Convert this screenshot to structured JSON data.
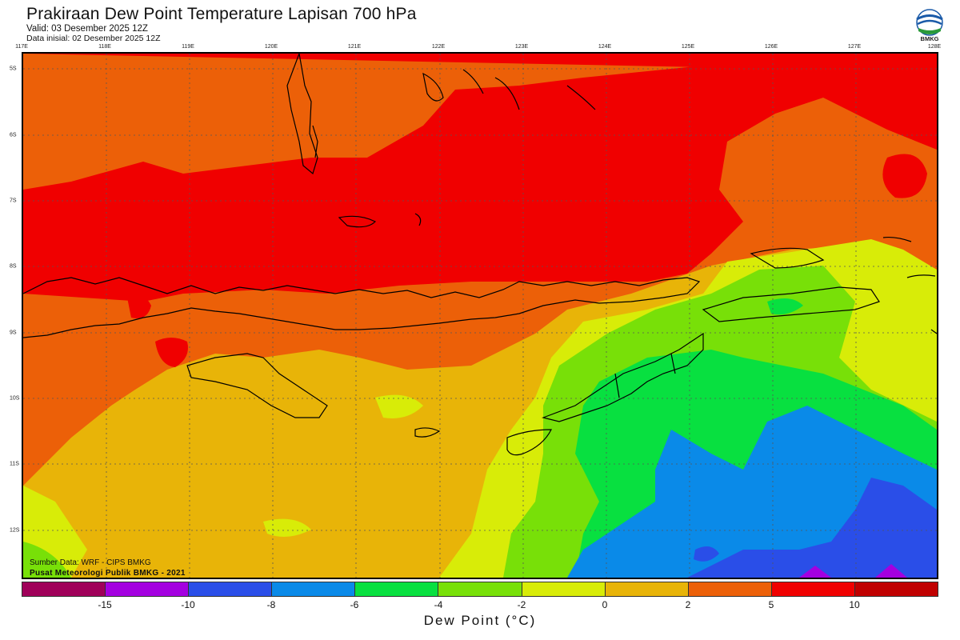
{
  "header": {
    "title": "Prakiraan Dew Point Temperature Lapisan 700 hPa",
    "valid": "Valid: 03 Desember 2025 12Z",
    "init": "Data inisial: 02 Desember 2025 12Z",
    "logo_text": "BMKG"
  },
  "map": {
    "longitude_labels": [
      "117E",
      "118E",
      "119E",
      "120E",
      "121E",
      "122E",
      "123E",
      "124E",
      "125E",
      "126E",
      "127E",
      "128E"
    ],
    "latitude_labels": [
      "5S",
      "6S",
      "7S",
      "8S",
      "9S",
      "10S",
      "11S",
      "12S"
    ]
  },
  "footer": {
    "source": "Sumber Data: WRF - CIPS BMKG",
    "org": "Pusat Meteorologi Publik BMKG - 2021"
  },
  "colorbar": {
    "title": "Dew Point (°C)",
    "colors": [
      "#a0005a",
      "#a400e0",
      "#2a4ee8",
      "#0a8ae8",
      "#08e040",
      "#78e008",
      "#d8ec08",
      "#e8b408",
      "#ec6008",
      "#f00000",
      "#c00000"
    ],
    "ticks": [
      "-15",
      "-10",
      "-8",
      "-6",
      "-4",
      "-2",
      "0",
      "2",
      "5",
      "10"
    ]
  }
}
